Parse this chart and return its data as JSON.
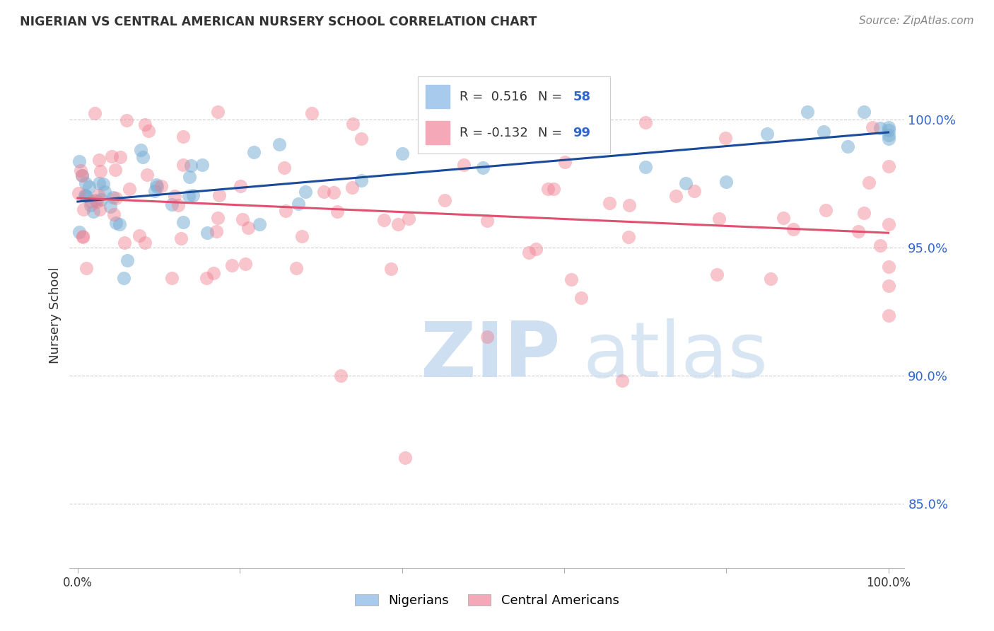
{
  "title": "NIGERIAN VS CENTRAL AMERICAN NURSERY SCHOOL CORRELATION CHART",
  "source": "Source: ZipAtlas.com",
  "ylabel": "Nursery School",
  "ytick_values": [
    1.0,
    0.95,
    0.9,
    0.85
  ],
  "xlim": [
    -0.01,
    1.02
  ],
  "ylim": [
    0.825,
    1.022
  ],
  "blue_R": 0.516,
  "blue_N": 58,
  "pink_R": -0.132,
  "pink_N": 99,
  "blue_color": "#7BAFD4",
  "pink_color": "#F08090",
  "blue_line_color": "#1A4A9A",
  "pink_line_color": "#E05070",
  "blue_legend_color": "#A8CAEC",
  "pink_legend_color": "#F5A8B8",
  "legend_text_color": "#333333",
  "legend_num_color": "#3366CC",
  "ytick_color": "#3366CC",
  "source_color": "#888888",
  "watermark_zip_color": "#C8DCF0",
  "watermark_atlas_color": "#C8DCF0"
}
